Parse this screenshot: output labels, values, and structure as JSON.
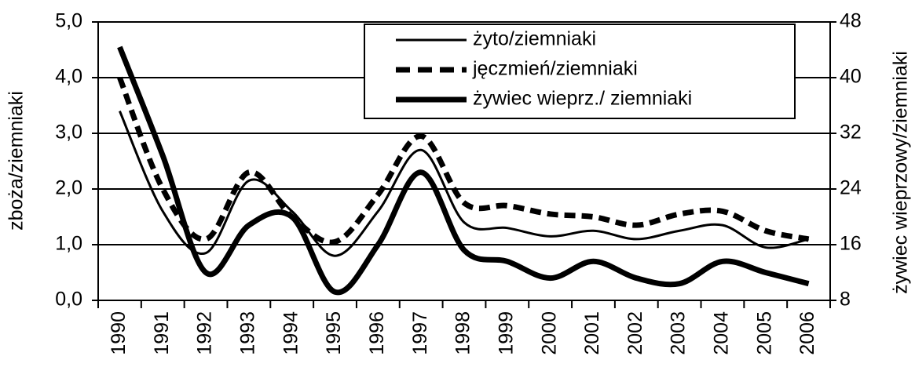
{
  "chart_data": {
    "type": "line",
    "ylabel": "zboża/ziemniaki",
    "y2label": "żywiec wieprzowy/ziemniaki",
    "categories": [
      "1990",
      "1991",
      "1992",
      "1993",
      "1994",
      "1995",
      "1996",
      "1997",
      "1998",
      "1999",
      "2000",
      "2001",
      "2002",
      "2003",
      "2004",
      "2005",
      "2006"
    ],
    "series": [
      {
        "name": "żyto/ziemniaki",
        "color": "#000000",
        "style": "solid",
        "width": 3,
        "values": [
          3.4,
          1.6,
          0.85,
          2.15,
          1.6,
          0.8,
          1.6,
          2.7,
          1.4,
          1.3,
          1.15,
          1.25,
          1.1,
          1.25,
          1.35,
          0.95,
          1.1
        ]
      },
      {
        "name": "jęczmień/ziemniaki",
        "color": "#000000",
        "style": "dashed",
        "width": 7,
        "values": [
          4.0,
          2.0,
          1.1,
          2.3,
          1.5,
          1.05,
          1.9,
          2.95,
          1.75,
          1.7,
          1.55,
          1.5,
          1.35,
          1.55,
          1.6,
          1.25,
          1.1
        ]
      },
      {
        "name": "żywiec wieprz./ ziemniaki",
        "color": "#000000",
        "style": "solid",
        "width": 7,
        "axis": "y2",
        "values": [
          44.4,
          28.8,
          12,
          18.8,
          20,
          9.2,
          16,
          26.4,
          15.2,
          13.6,
          11.2,
          13.6,
          11.2,
          10.4,
          13.6,
          12,
          10.4
        ]
      }
    ],
    "ylim": [
      0,
      5
    ],
    "yticks": [
      {
        "value": 0,
        "label": "0,0"
      },
      {
        "value": 1,
        "label": "1,0"
      },
      {
        "value": 2,
        "label": "2,0"
      },
      {
        "value": 3,
        "label": "3,0"
      },
      {
        "value": 4,
        "label": "4,0"
      },
      {
        "value": 5,
        "label": "5,0"
      }
    ],
    "y2lim": [
      8,
      48
    ],
    "y2ticks": [
      8,
      16,
      24,
      32,
      40,
      48
    ],
    "grid": true,
    "legend": "upper right"
  }
}
